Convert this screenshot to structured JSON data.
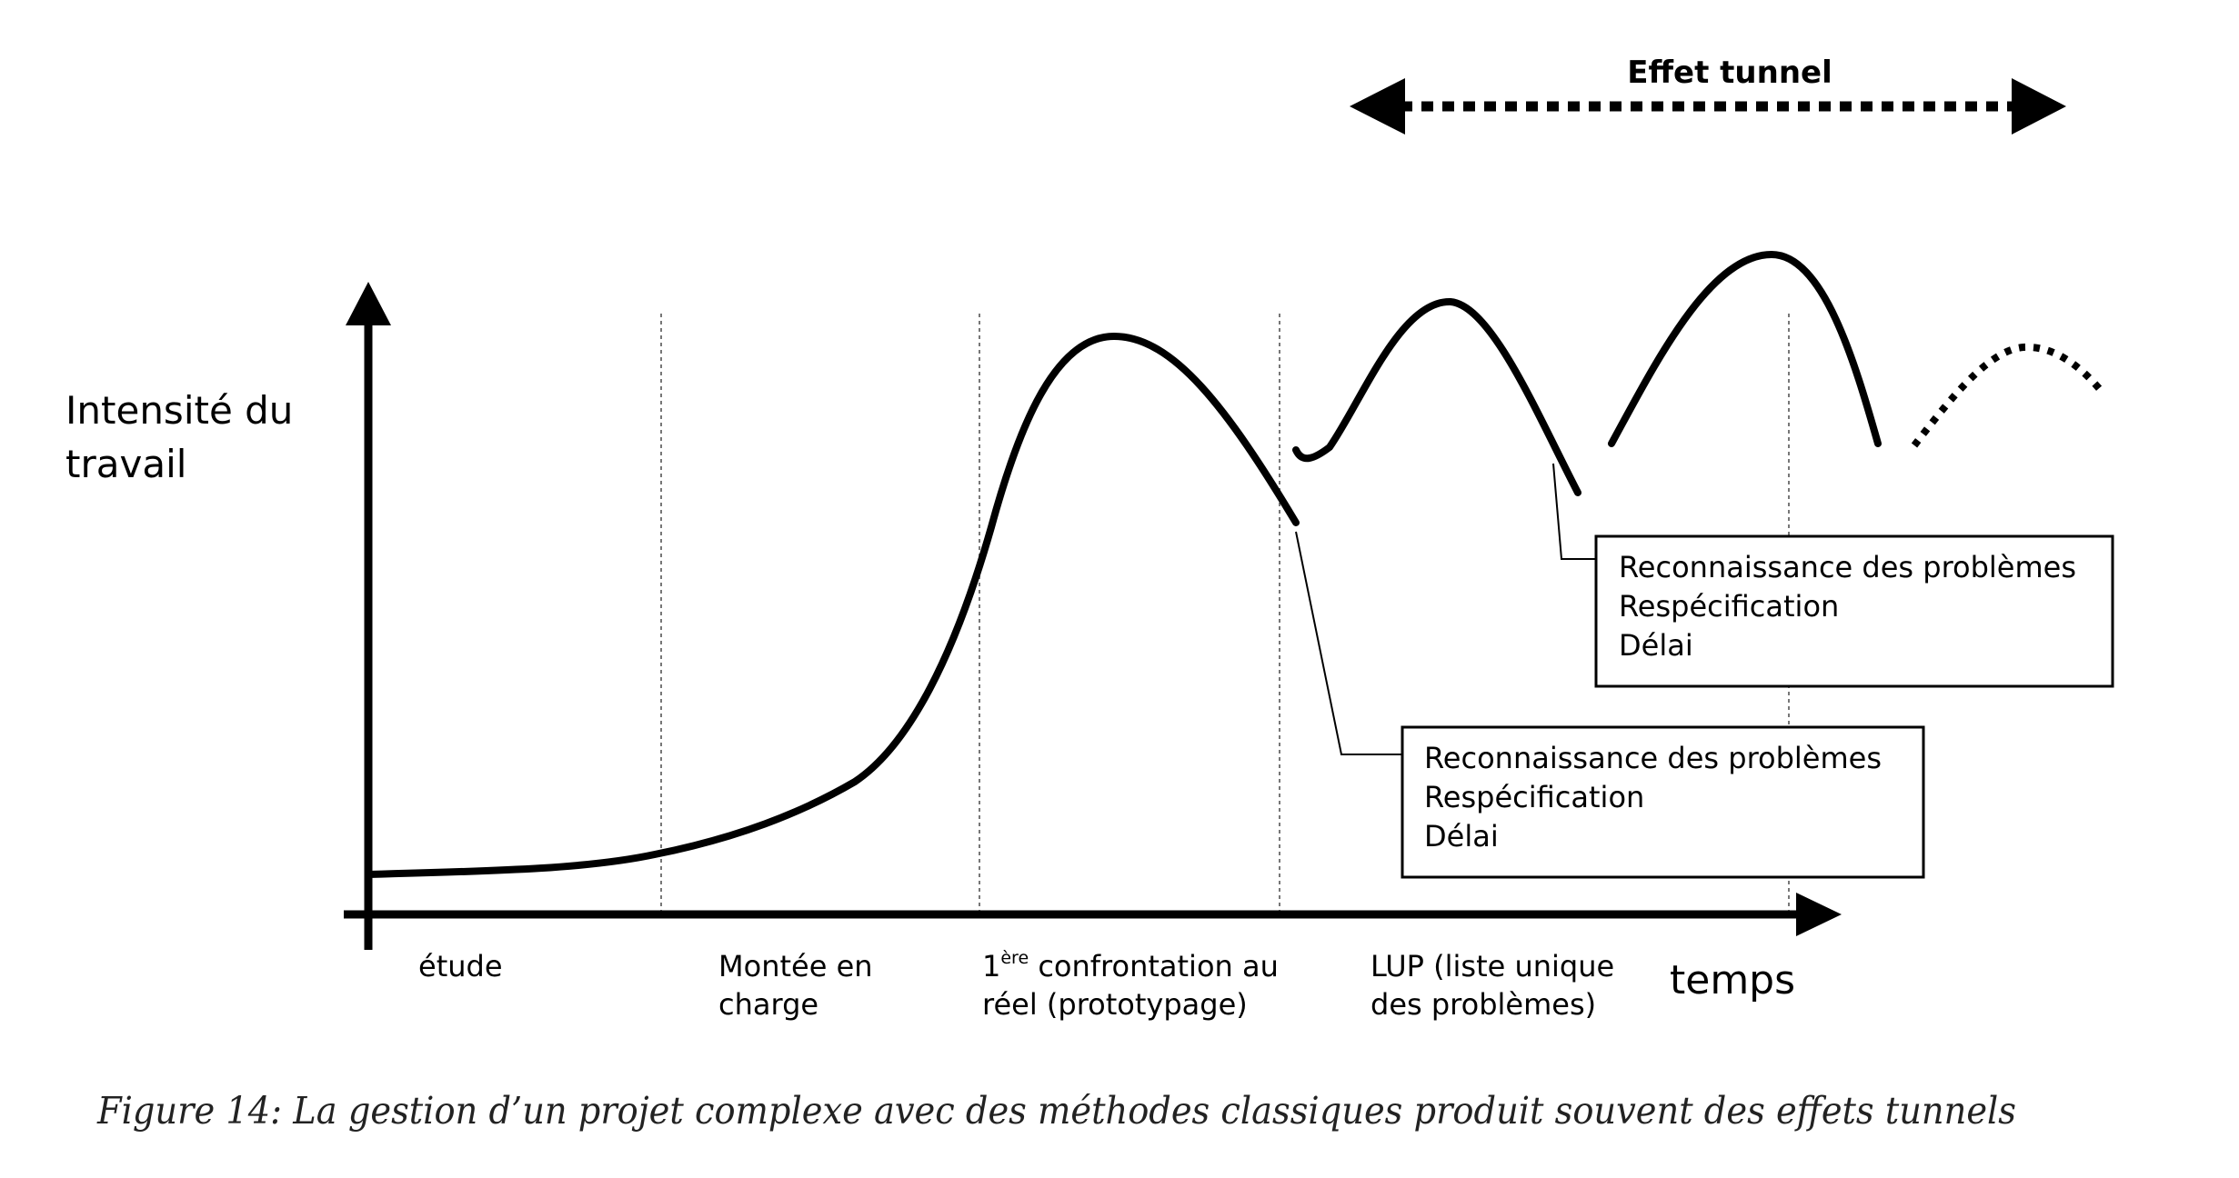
{
  "tunnel": {
    "label": "Effet tunnel",
    "color": "#e8141c"
  },
  "axes": {
    "y_label_line1": "Intensité du",
    "y_label_line2": "travail",
    "x_label": "temps"
  },
  "phases": [
    {
      "line1": "étude",
      "line2": ""
    },
    {
      "line1": "Montée en",
      "line2": "charge"
    },
    {
      "line1_prefix": "1",
      "line1_sup": "ère",
      "line1_suffix": " confrontation au",
      "line2": "réel (prototypage)"
    },
    {
      "line1": "LUP (liste unique",
      "line2": "des problèmes)"
    }
  ],
  "callout_lower": {
    "lines": [
      "Reconnaissance des problèmes",
      "Respécification",
      "Délai"
    ]
  },
  "callout_upper": {
    "lines": [
      "Reconnaissance des problèmes",
      "Respécification",
      "Délai"
    ]
  },
  "caption": "Figure 14: La gestion d’un projet complexe avec des méthodes classiques produit souvent des effets tunnels"
}
